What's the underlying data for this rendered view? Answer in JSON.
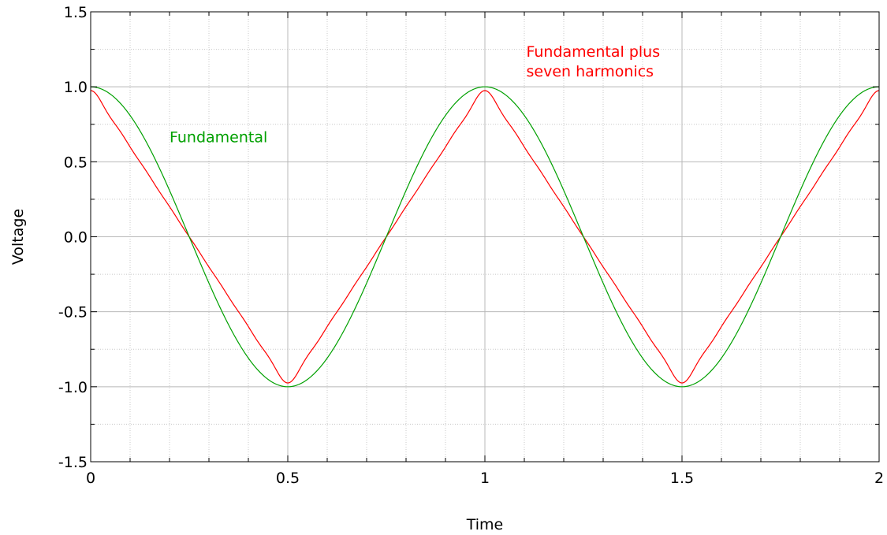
{
  "chart_data": {
    "type": "line",
    "title": "",
    "xlabel": "Time",
    "ylabel": "Voltage",
    "xlim": [
      0,
      2
    ],
    "ylim": [
      -1.5,
      1.5
    ],
    "x_ticks": [
      "0",
      "0.5",
      "1",
      "1.5",
      "2"
    ],
    "y_ticks": [
      "1.5",
      "1.0",
      "0.5",
      "0.0",
      "-0.5",
      "-1.0",
      "-1.5"
    ],
    "grid": true,
    "series": [
      {
        "label": "Fundamental",
        "color": "#00a000",
        "formula": "cos(2*pi*t)",
        "x": [
          0,
          0.125,
          0.25,
          0.375,
          0.5,
          0.625,
          0.75,
          0.875,
          1.0,
          1.125,
          1.25,
          1.375,
          1.5,
          1.625,
          1.75,
          1.875,
          2.0
        ],
        "y": [
          1.0,
          0.71,
          0.0,
          -0.71,
          -1.0,
          -0.71,
          0.0,
          0.71,
          1.0,
          0.71,
          0.0,
          -0.71,
          -1.0,
          -0.71,
          0.0,
          0.71,
          1.0
        ]
      },
      {
        "label": "Fundamental plus seven harmonics",
        "color": "#ff0000",
        "formula": "sum over odd n=1..15 of (8/(pi^2 n^2)) cos(2*pi*n*t)",
        "x": [
          0,
          0.125,
          0.25,
          0.375,
          0.5,
          0.625,
          0.75,
          0.875,
          1.0,
          1.125,
          1.25,
          1.375,
          1.5,
          1.625,
          1.75,
          1.875,
          2.0
        ],
        "y": [
          1.2,
          0.6,
          0.0,
          -0.6,
          -1.2,
          -0.6,
          0.0,
          0.6,
          1.2,
          0.6,
          0.0,
          -0.6,
          -1.2,
          -0.6,
          0.0,
          0.6,
          1.2
        ]
      }
    ],
    "annotations": [
      {
        "series": 0,
        "lines": [
          "Fundamental"
        ],
        "color": "#00a000"
      },
      {
        "series": 1,
        "lines": [
          "Fundamental plus",
          "seven harmonics"
        ],
        "color": "#ff0000"
      }
    ]
  }
}
